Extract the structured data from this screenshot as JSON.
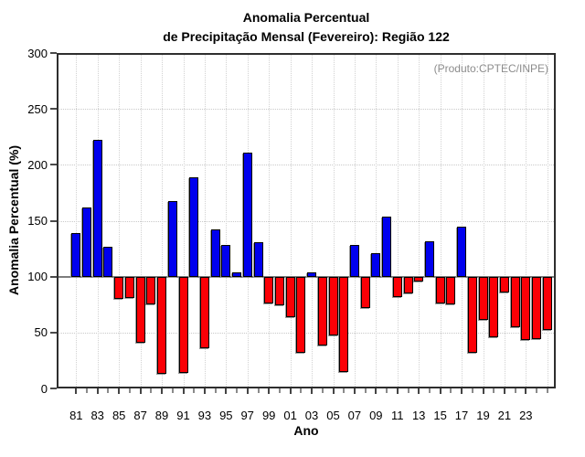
{
  "title": {
    "line1": "Anomalia Percentual",
    "line2": "de Precipitação Mensal (Fevereiro): Região 122"
  },
  "annotation": "(Produto:CPTEC/INPE)",
  "chart_data": {
    "type": "bar",
    "title": "Anomalia Percentual de Precipitação Mensal (Fevereiro): Região 122",
    "xlabel": "Ano",
    "ylabel": "Anomalia Percentual (%)",
    "ylim": [
      0,
      300
    ],
    "yticks": [
      0,
      50,
      100,
      150,
      200,
      250,
      300
    ],
    "ygridlines": [
      50,
      150,
      200,
      250
    ],
    "baseline": 100,
    "grid": true,
    "legend": "none",
    "x_tick_labels": [
      "81",
      "83",
      "85",
      "87",
      "89",
      "91",
      "93",
      "95",
      "97",
      "99",
      "01",
      "03",
      "05",
      "07",
      "09",
      "11",
      "13",
      "15",
      "17",
      "19",
      "21",
      "23"
    ],
    "years": [
      1981,
      1982,
      1983,
      1984,
      1985,
      1986,
      1987,
      1988,
      1989,
      1990,
      1991,
      1992,
      1993,
      1994,
      1995,
      1996,
      1997,
      1998,
      1999,
      2000,
      2001,
      2002,
      2003,
      2004,
      2005,
      2006,
      2007,
      2008,
      2009,
      2010,
      2011,
      2012,
      2013,
      2014,
      2015,
      2016,
      2017,
      2018,
      2019,
      2020,
      2021,
      2022,
      2023,
      2024,
      2025
    ],
    "values": [
      139,
      162,
      222,
      127,
      80,
      81,
      41,
      75,
      13,
      168,
      14,
      189,
      36,
      142,
      128,
      104,
      211,
      131,
      76,
      74,
      64,
      32,
      104,
      38,
      47,
      15,
      128,
      72,
      121,
      154,
      82,
      85,
      96,
      132,
      76,
      75,
      145,
      32,
      61,
      46,
      86,
      55,
      43,
      44,
      52
    ],
    "colors": {
      "above_baseline": "#0000ee",
      "below_baseline": "#fb0006",
      "bar_border": "#000000",
      "baseline_line": "#7d7d7d",
      "grid": "#c9c9c9",
      "annotation_text": "#8c8c8c"
    }
  }
}
